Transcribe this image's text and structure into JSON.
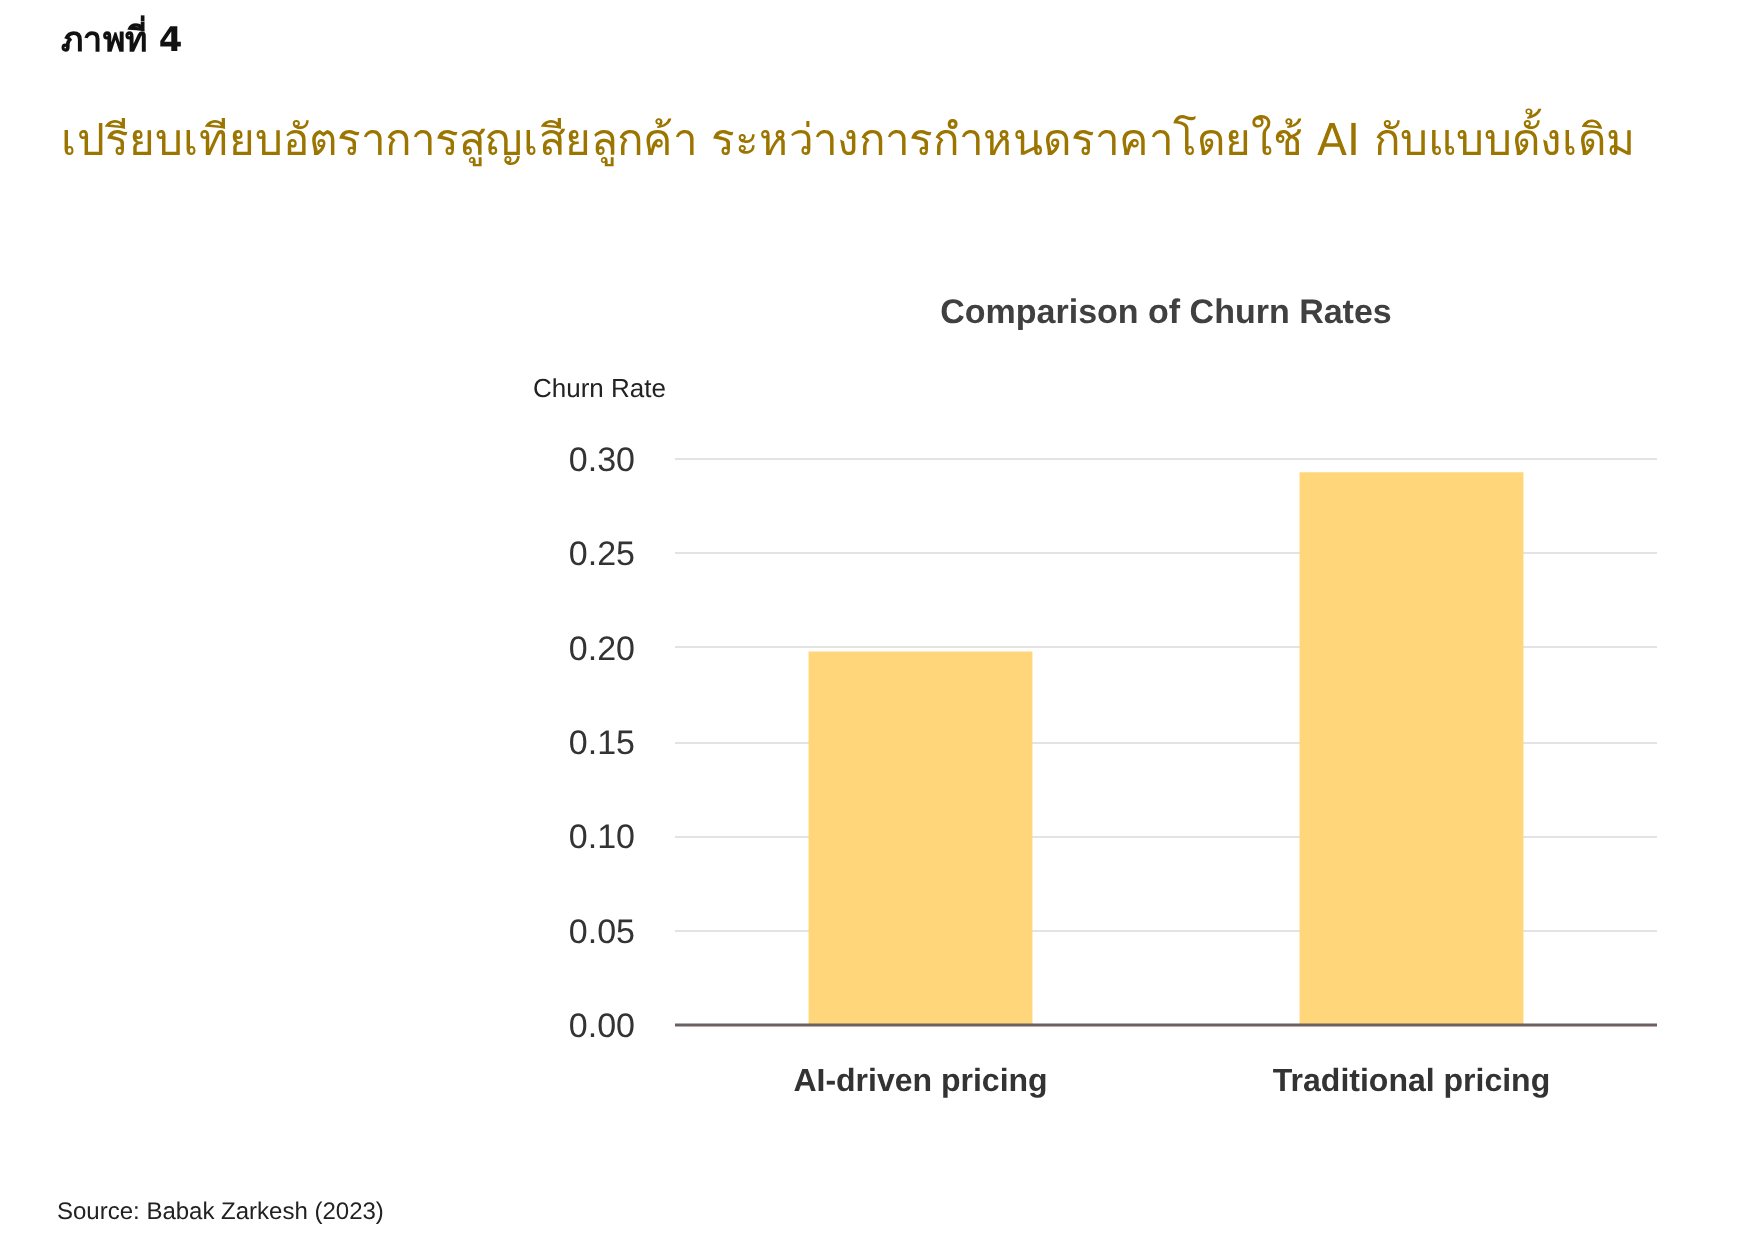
{
  "chart_data": {
    "type": "bar",
    "title": "เปรียบเทียบอัตราการสูญเสียลูกค้า ระหว่างการกำหนดราคาโดยใช้ AI กับแบบดั้งเดิม",
    "subtitle": "Comparison of Churn Rates",
    "ylabel": "Churn Rate",
    "categories": [
      "AI-driven pricing",
      "Traditional pricing"
    ],
    "values": [
      0.198,
      0.293
    ],
    "color": "#ffd77a",
    "ylim": [
      0,
      0.3
    ],
    "yticks": [
      {
        "value": 0,
        "label": "0.00"
      },
      {
        "value": 0.05,
        "label": "0.05"
      },
      {
        "value": 0.1,
        "label": "0.10"
      },
      {
        "value": 0.15,
        "label": "0.15"
      },
      {
        "value": 0.2,
        "label": "0.20"
      },
      {
        "value": 0.25,
        "label": "0.25"
      },
      {
        "value": 0.3,
        "label": "0.30"
      }
    ],
    "grid": "y",
    "annotations": [
      "ภาพที่ 4",
      "Source: Babak Zarkesh (2023)"
    ]
  }
}
